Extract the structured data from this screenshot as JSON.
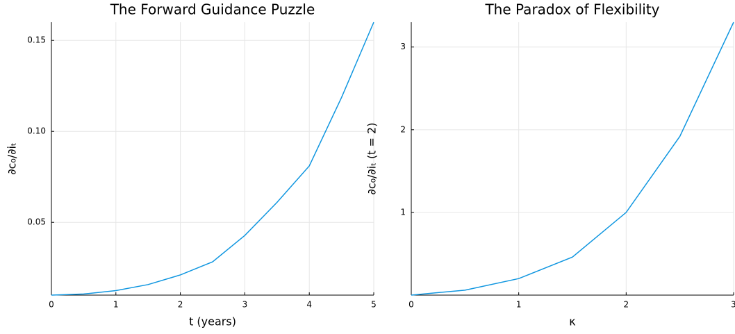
{
  "chart_data": [
    {
      "type": "line",
      "title": "The Forward Guidance Puzzle",
      "x_label": "t (years)",
      "y_label": "∂c₀/∂iₜ",
      "x": [
        0,
        0.5,
        1,
        1.5,
        2,
        2.5,
        3,
        3.5,
        4,
        4.5,
        5
      ],
      "series": [
        {
          "color": "#0f96e0",
          "values": [
            0.01,
            0.0106,
            0.0125,
            0.0158,
            0.0211,
            0.0283,
            0.0428,
            0.061,
            0.081,
            0.1186,
            0.16
          ]
        }
      ],
      "xlim": [
        0,
        5
      ],
      "ylim": [
        0.01,
        0.16
      ],
      "xticks": [
        0,
        1,
        2,
        3,
        4,
        5
      ],
      "yticks": [
        0.05,
        {
          "value": 0.1,
          "label": "0.10"
        },
        0.15
      ],
      "grid": true
    },
    {
      "type": "line",
      "title": "The Paradox of Flexibility",
      "x_label": "κ",
      "y_label": "∂c₀/∂iₜ (t = 2)",
      "x": [
        0,
        0.5,
        1,
        1.5,
        2,
        2.5,
        3
      ],
      "series": [
        {
          "color": "#0f96e0",
          "values": [
            0,
            0.06,
            0.2,
            0.46,
            1.0,
            1.92,
            3.3
          ]
        }
      ],
      "xlim": [
        0,
        3
      ],
      "ylim": [
        0,
        3.3
      ],
      "xticks": [
        0,
        1,
        2,
        3
      ],
      "yticks": [
        1,
        2,
        3
      ],
      "grid": true
    }
  ]
}
